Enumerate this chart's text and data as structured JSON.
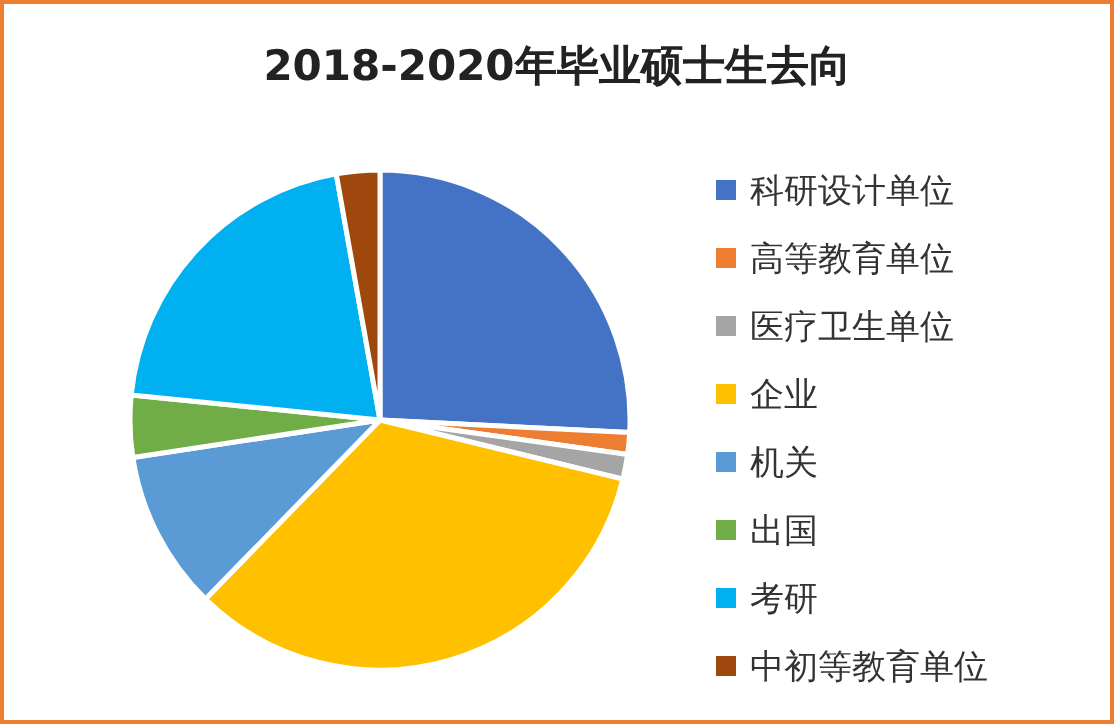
{
  "chart_data": {
    "type": "pie",
    "title": "2018-2020年毕业硕士生去向",
    "categories": [
      "科研设计单位",
      "高等教育单位",
      "医疗卫生单位",
      "企业",
      "机关",
      "出国",
      "考研",
      "中初等教育单位"
    ],
    "values": [
      25.8,
      1.4,
      1.6,
      33.5,
      10.3,
      4.0,
      20.6,
      2.8
    ],
    "colors": [
      "#4472c4",
      "#ed7d31",
      "#a5a5a5",
      "#ffc000",
      "#5b9bd5",
      "#70ad47",
      "#00b0f0",
      "#9e480e"
    ],
    "legend": "right"
  }
}
